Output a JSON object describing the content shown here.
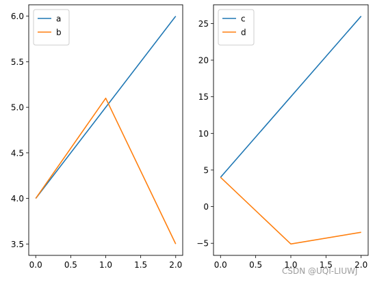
{
  "chart_data": [
    {
      "type": "line",
      "x": [
        0,
        1,
        2
      ],
      "series": [
        {
          "name": "a",
          "values": [
            4.0,
            5.0,
            6.0
          ],
          "color": "#1f77b4"
        },
        {
          "name": "b",
          "values": [
            4.0,
            5.1,
            3.5
          ],
          "color": "#ff7f0e"
        }
      ],
      "xlim": [
        -0.1,
        2.1
      ],
      "ylim": [
        3.375,
        6.125
      ],
      "xticks": [
        0.0,
        0.5,
        1.0,
        1.5,
        2.0
      ],
      "xtick_labels": [
        "0.0",
        "0.5",
        "1.0",
        "1.5",
        "2.0"
      ],
      "yticks": [
        3.5,
        4.0,
        4.5,
        5.0,
        5.5,
        6.0
      ],
      "ytick_labels": [
        "3.5",
        "4.0",
        "4.5",
        "5.0",
        "5.5",
        "6.0"
      ],
      "legend_position": "upper-left",
      "grid": false,
      "title": "",
      "xlabel": "",
      "ylabel": ""
    },
    {
      "type": "line",
      "x": [
        0,
        1,
        2
      ],
      "series": [
        {
          "name": "c",
          "values": [
            4,
            15,
            26
          ],
          "color": "#1f77b4"
        },
        {
          "name": "d",
          "values": [
            4,
            -5.1,
            -3.5
          ],
          "color": "#ff7f0e"
        }
      ],
      "xlim": [
        -0.1,
        2.1
      ],
      "ylim": [
        -6.655,
        27.555
      ],
      "xticks": [
        0.0,
        0.5,
        1.0,
        1.5,
        2.0
      ],
      "xtick_labels": [
        "0.0",
        "0.5",
        "1.0",
        "1.5",
        "2.0"
      ],
      "yticks": [
        -5,
        0,
        5,
        10,
        15,
        20,
        25
      ],
      "ytick_labels": [
        "−5",
        "0",
        "5",
        "10",
        "15",
        "20",
        "25"
      ],
      "legend_position": "upper-left",
      "grid": false,
      "title": "",
      "xlabel": "",
      "ylabel": ""
    }
  ],
  "watermark": {
    "text": "CSDN @UQI-LIUWJ"
  }
}
